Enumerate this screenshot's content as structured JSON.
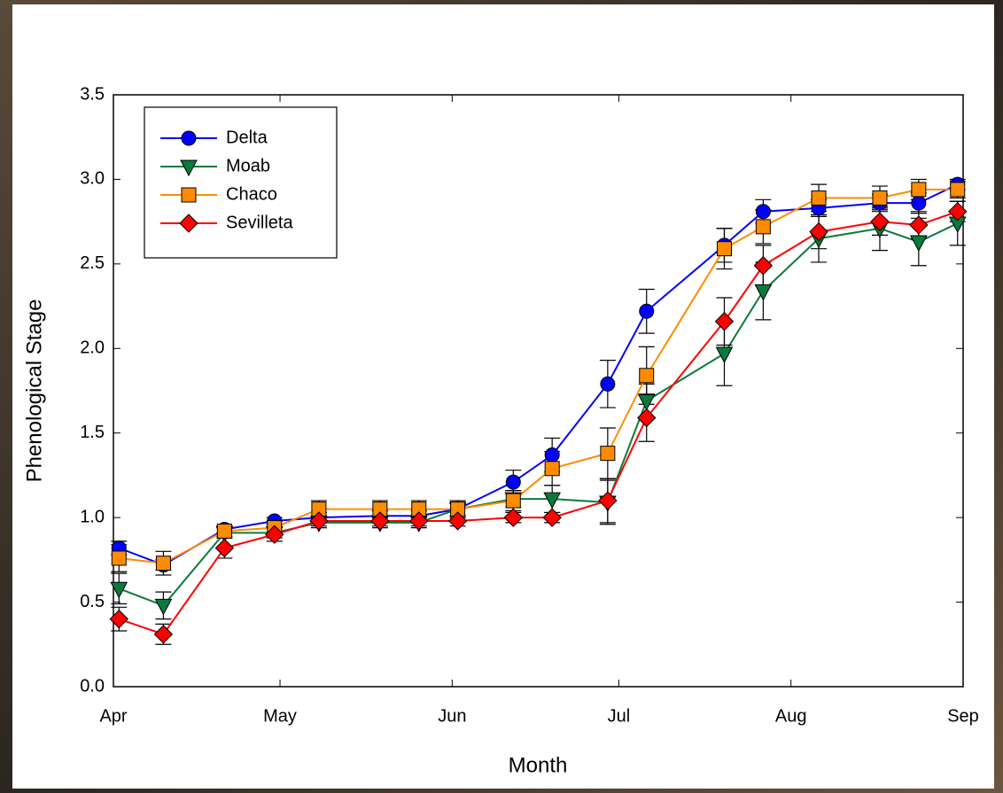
{
  "chart_data": {
    "type": "line",
    "xlabel": "Month",
    "ylabel": "Phenological Stage",
    "x": [
      1,
      9,
      20,
      29,
      37,
      48,
      55,
      62,
      72,
      79,
      89,
      96,
      110,
      117,
      127,
      138,
      145,
      152
    ],
    "xlim": [
      0,
      153
    ],
    "xticks": [
      {
        "value": 0,
        "label": "Apr"
      },
      {
        "value": 30,
        "label": "May"
      },
      {
        "value": 61,
        "label": "Jun"
      },
      {
        "value": 91,
        "label": "Jul"
      },
      {
        "value": 122,
        "label": "Aug"
      },
      {
        "value": 153,
        "label": "Sep"
      }
    ],
    "ylim": [
      0,
      3.5
    ],
    "yticks": [
      {
        "value": 0,
        "label": "0.0"
      },
      {
        "value": 0.5,
        "label": "0.5"
      },
      {
        "value": 1,
        "label": "1.0"
      },
      {
        "value": 1.5,
        "label": "1.5"
      },
      {
        "value": 2,
        "label": "2.0"
      },
      {
        "value": 2.5,
        "label": "2.5"
      },
      {
        "value": 3,
        "label": "3.0"
      },
      {
        "value": 3.5,
        "label": "3.5"
      }
    ],
    "legend": "upper left",
    "series": [
      {
        "name": "Delta",
        "color": "#0000ff",
        "marker": "circle",
        "values": [
          0.82,
          0.72,
          0.93,
          0.98,
          1.0,
          1.01,
          1.01,
          1.05,
          1.21,
          1.37,
          1.79,
          2.22,
          2.61,
          2.81,
          2.83,
          2.86,
          2.86,
          2.97
        ],
        "error": [
          0.04,
          0.03,
          0.02,
          0.02,
          0.03,
          0.03,
          0.03,
          0.05,
          0.07,
          0.1,
          0.14,
          0.13,
          0.1,
          0.07,
          0.05,
          0.05,
          0.06,
          0.03
        ]
      },
      {
        "name": "Moab",
        "color": "#0a7a3c",
        "marker": "triangle-down",
        "values": [
          0.58,
          0.48,
          0.91,
          0.91,
          0.97,
          0.97,
          0.97,
          1.05,
          1.11,
          1.11,
          1.09,
          1.69,
          1.97,
          2.34,
          2.65,
          2.71,
          2.63,
          2.74
        ],
        "error": [
          0.09,
          0.08,
          0.03,
          0.03,
          0.03,
          0.03,
          0.03,
          0.04,
          0.05,
          0.08,
          0.13,
          0.1,
          0.19,
          0.17,
          0.14,
          0.13,
          0.14,
          0.13
        ]
      },
      {
        "name": "Chaco",
        "color": "#ff8c00",
        "marker": "square",
        "values": [
          0.76,
          0.73,
          0.92,
          0.94,
          1.05,
          1.05,
          1.05,
          1.05,
          1.1,
          1.29,
          1.38,
          1.84,
          2.59,
          2.72,
          2.89,
          2.89,
          2.94,
          2.94
        ],
        "error": [
          0.08,
          0.07,
          0.03,
          0.04,
          0.05,
          0.05,
          0.05,
          0.05,
          0.06,
          0.1,
          0.15,
          0.17,
          0.12,
          0.1,
          0.08,
          0.07,
          0.06,
          0.05
        ]
      },
      {
        "name": "Sevilleta",
        "color": "#ff0000",
        "marker": "diamond",
        "values": [
          0.4,
          0.31,
          0.82,
          0.9,
          0.98,
          0.98,
          0.98,
          0.98,
          1.0,
          1.0,
          1.1,
          1.59,
          2.16,
          2.49,
          2.69,
          2.75,
          2.73,
          2.81
        ],
        "error": [
          0.07,
          0.06,
          0.06,
          0.04,
          0.03,
          0.03,
          0.03,
          0.03,
          0.03,
          0.03,
          0.13,
          0.14,
          0.14,
          0.12,
          0.1,
          0.08,
          0.08,
          0.06
        ]
      }
    ]
  }
}
